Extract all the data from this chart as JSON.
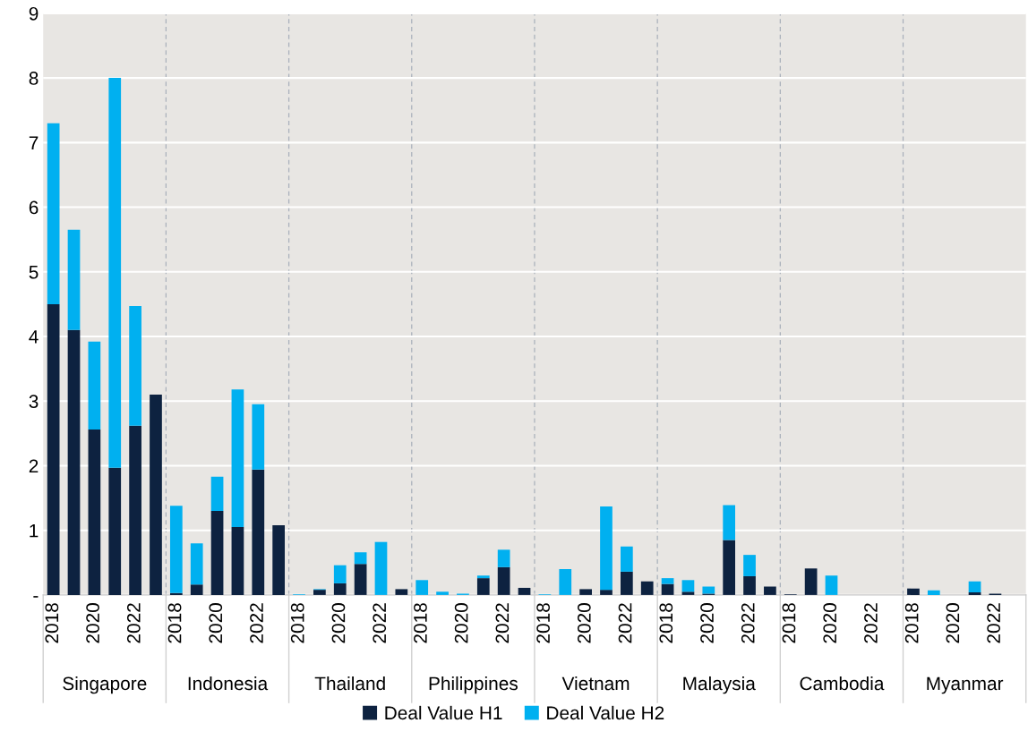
{
  "chart_data": {
    "type": "bar",
    "stacked": true,
    "categories": [
      "2018",
      null,
      "2020",
      null,
      "2022",
      null,
      "2018",
      null,
      "2020",
      null,
      "2022",
      null,
      "2018",
      null,
      "2020",
      null,
      "2022",
      null,
      "2018",
      null,
      "2020",
      null,
      "2022",
      null,
      "2018",
      null,
      "2020",
      null,
      "2022",
      null,
      "2018",
      null,
      "2020",
      null,
      "2022",
      null,
      "2018",
      null,
      "2020",
      null,
      "2022",
      null,
      "2018",
      null,
      "2020",
      null,
      "2022",
      null
    ],
    "series": [
      {
        "name": "Deal Value H1",
        "color": "#0d2240",
        "values": [
          4.5,
          4.1,
          2.56,
          1.97,
          2.62,
          3.1,
          0.03,
          0.16,
          1.3,
          1.05,
          1.94,
          1.08,
          0,
          0.08,
          0.18,
          0.48,
          0,
          0.09,
          0,
          0,
          0,
          0.26,
          0.43,
          0.11,
          0,
          0,
          0.09,
          0.08,
          0.36,
          0.21,
          0.17,
          0.05,
          0.02,
          0.85,
          0.29,
          0.13,
          0.01,
          0.41,
          0,
          0,
          0,
          0,
          0.1,
          0,
          0,
          0.04,
          0.02,
          0
        ]
      },
      {
        "name": "Deal Value H2",
        "color": "#00b0f0",
        "values": [
          2.8,
          1.55,
          1.36,
          6.03,
          1.85,
          0,
          1.35,
          0.64,
          0.53,
          2.13,
          1.01,
          0,
          0.01,
          0.01,
          0.28,
          0.18,
          0.82,
          0,
          0.23,
          0.05,
          0.02,
          0.04,
          0.27,
          0,
          0.01,
          0.4,
          0,
          1.29,
          0.39,
          0,
          0.09,
          0.18,
          0.11,
          0.54,
          0.33,
          0,
          0,
          0,
          0.3,
          0,
          0,
          0,
          0,
          0.07,
          0,
          0.17,
          0,
          0
        ]
      }
    ],
    "ylim": [
      0,
      9
    ],
    "yticks": [
      {
        "value": 0,
        "label": "-"
      },
      1,
      2,
      3,
      4,
      5,
      6,
      7,
      8,
      9
    ],
    "grid": "y",
    "legend": "bottom",
    "annotations": [
      "Singapore",
      "Indonesia",
      "Thailand",
      "Philippines",
      "Vietnam",
      "Malaysia",
      "Cambodia",
      "Myanmar"
    ]
  }
}
